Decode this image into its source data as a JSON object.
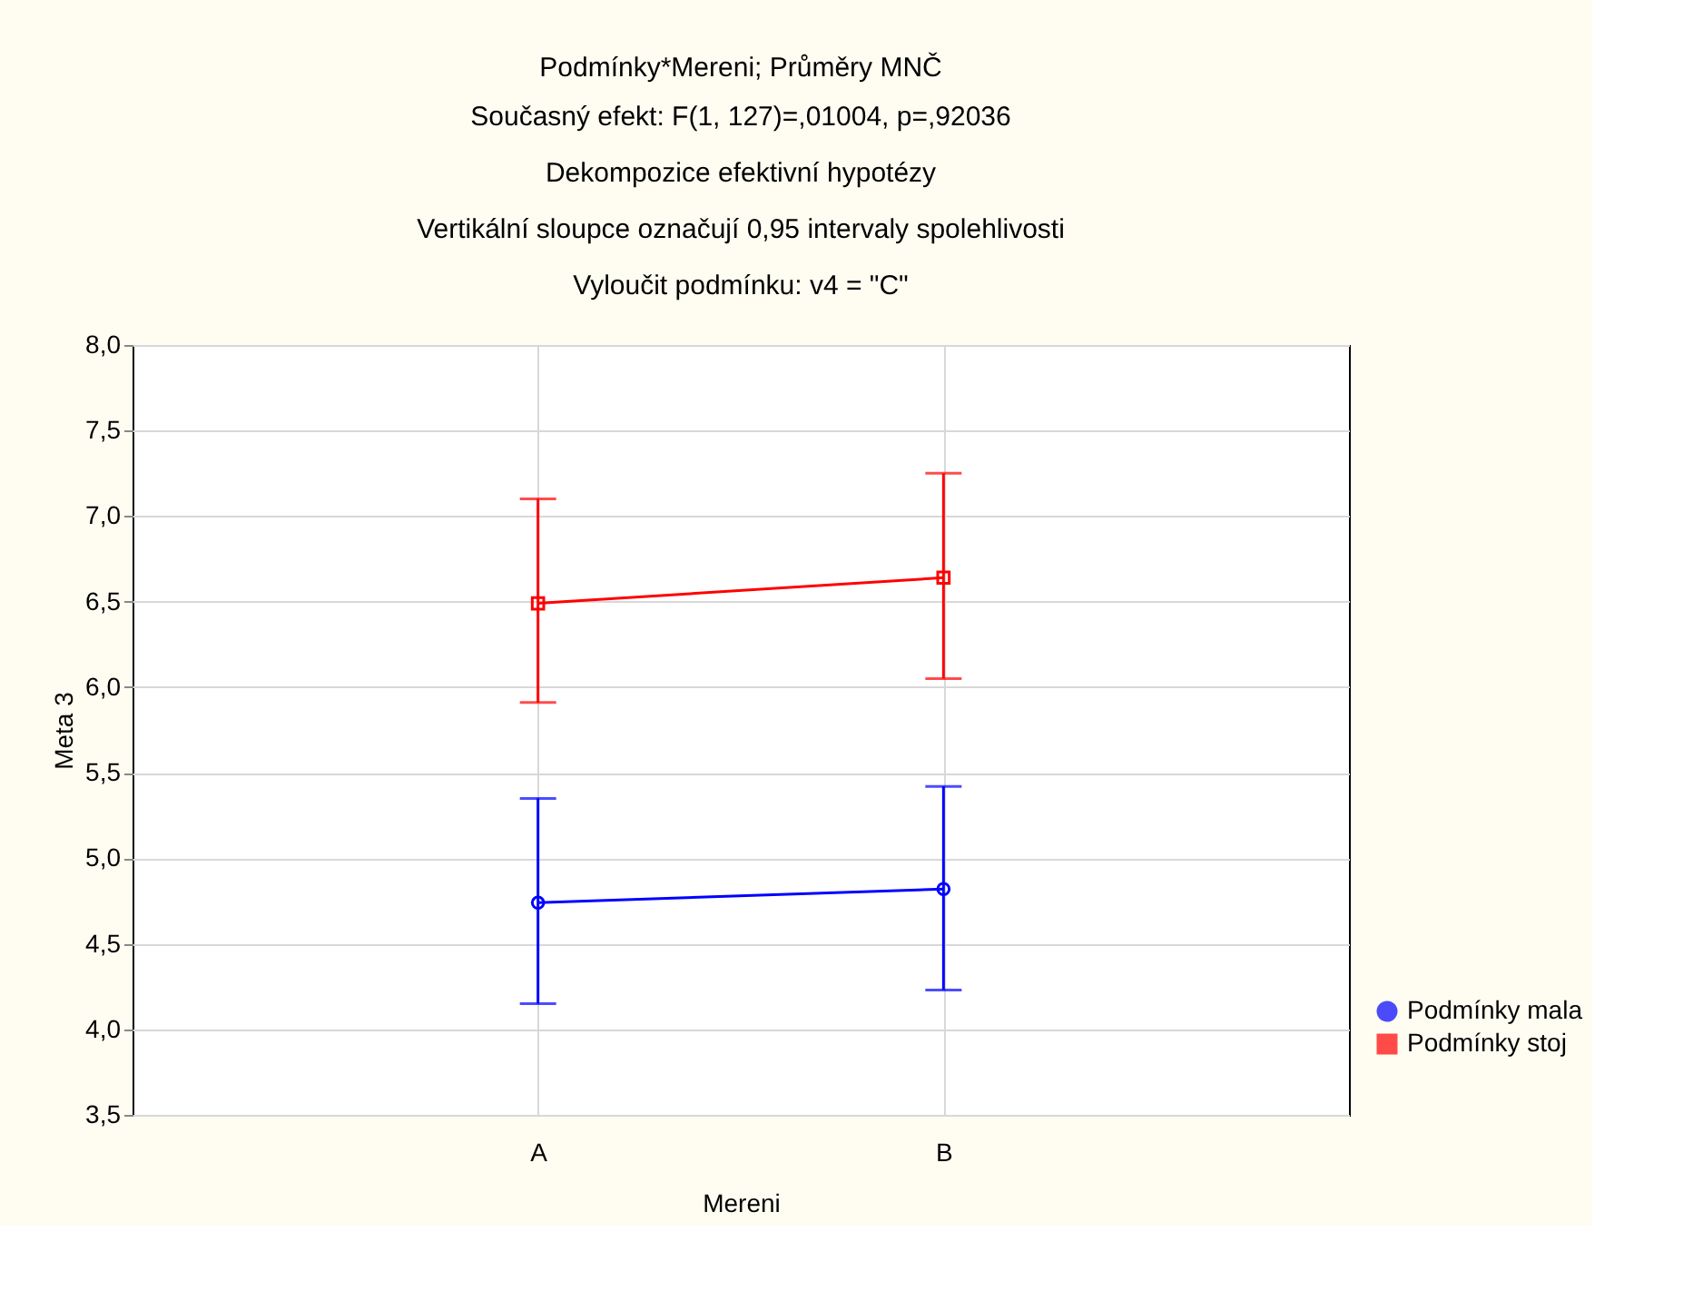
{
  "chart_data": {
    "type": "line",
    "title": "Podmínky*Mereni; Průměry MNČ",
    "subtitle": "Současný efekt: F(1, 127)=,01004, p=,92036\nDekompozice efektivní hypotézy\nVertikální sloupce označují 0,95 intervaly spolehlivosti\nVyloučit podmínku: v4 = \"C\"",
    "xlabel": "Mereni",
    "ylabel": "Meta 3",
    "categories": [
      "A",
      "B"
    ],
    "series": [
      {
        "name": "Podmínky mala",
        "color": "#0000ff",
        "marker": "circle",
        "values": [
          4.74,
          4.82
        ],
        "errors": [
          [
            4.15,
            5.35
          ],
          [
            4.23,
            5.42
          ]
        ]
      },
      {
        "name": "Podmínky stoj",
        "color": "#ff0000",
        "marker": "square",
        "values": [
          6.49,
          6.64
        ],
        "errors": [
          [
            5.91,
            7.1
          ],
          [
            6.05,
            7.25
          ]
        ]
      }
    ],
    "ylim": [
      3.5,
      8.0
    ],
    "yticks": [
      {
        "value": 3.5,
        "label": "3,5"
      },
      {
        "value": 4.0,
        "label": "4,0"
      },
      {
        "value": 4.5,
        "label": "4,5"
      },
      {
        "value": 5.0,
        "label": "5,0"
      },
      {
        "value": 5.5,
        "label": "5,5"
      },
      {
        "value": 6.0,
        "label": "6,0"
      },
      {
        "value": 6.5,
        "label": "6,5"
      },
      {
        "value": 7.0,
        "label": "7,0"
      },
      {
        "value": 7.5,
        "label": "7,5"
      },
      {
        "value": 8.0,
        "label": "8,0"
      }
    ],
    "grid": true,
    "legend": "bottom right",
    "line_style": "solid"
  }
}
